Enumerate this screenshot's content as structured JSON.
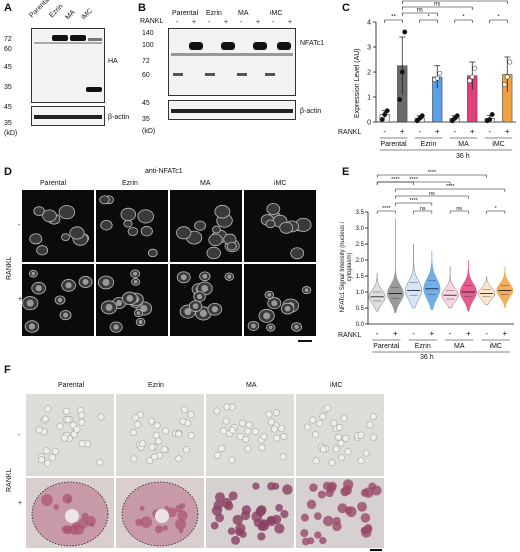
{
  "panels": {
    "A": {
      "label": "A",
      "lanes": [
        "Parental",
        "Ezrin",
        "MA",
        "iMC"
      ],
      "markers_top": [
        "72",
        "60",
        "45",
        "35"
      ],
      "target_label": "HA",
      "markers_bottom": [
        "45",
        "35"
      ],
      "loading_label": "β-actin",
      "unit": "(kD)"
    },
    "B": {
      "label": "B",
      "groups": [
        "Parental",
        "Ezrin",
        "MA",
        "iMC"
      ],
      "treatment_label": "RANKL",
      "signs": [
        "-",
        "+",
        "-",
        "+",
        "-",
        "+",
        "-",
        "+"
      ],
      "markers_top": [
        "140",
        "100",
        "72",
        "60"
      ],
      "target_label": "NFATc1",
      "markers_bottom": [
        "45",
        "35"
      ],
      "loading_label": "β-actin",
      "unit": "(kD)"
    },
    "C": {
      "label": "C",
      "ylabel": "Expression Level (AU)",
      "yticks": [
        "0",
        "1",
        "2",
        "3",
        "4"
      ],
      "treatment_label": "RANKL",
      "signs": [
        "-",
        "+",
        "-",
        "+",
        "-",
        "+",
        "-",
        "+"
      ],
      "groups": [
        "Parental",
        "Ezrin",
        "MA",
        "iMC"
      ],
      "time_label": "36 h",
      "sig": [
        "**",
        "*",
        "ns",
        "*",
        "ns",
        "*",
        "ns",
        "ns",
        "ns"
      ]
    },
    "D": {
      "label": "D",
      "title": "anti-NFATc1",
      "columns": [
        "Parental",
        "Ezrin",
        "MA",
        "iMC"
      ],
      "rows_label": "RANKL",
      "rows": [
        "-",
        "+"
      ]
    },
    "E": {
      "label": "E",
      "ylabel": "NFATc1 Signal Intensity (nucleus / cytoplasm)",
      "yticks": [
        "0.0",
        "0.5",
        "1.0",
        "1.5",
        "2.0",
        "2.5",
        "3.0",
        "3.5"
      ],
      "treatment_label": "RANKL",
      "signs": [
        "-",
        "+",
        "-",
        "+",
        "-",
        "+",
        "-",
        "+"
      ],
      "groups": [
        "Parental",
        "Ezrin",
        "MA",
        "iMC"
      ],
      "time_label": "36 h",
      "sig": [
        "****",
        "****",
        "****",
        "****",
        "ns",
        "****",
        "ns",
        "ns",
        "*",
        "****"
      ]
    },
    "F": {
      "label": "F",
      "columns": [
        "Parental",
        "Ezrin",
        "MA",
        "iMC"
      ],
      "rows_label": "RANKL",
      "rows": [
        "-",
        "+"
      ]
    }
  },
  "chart_data": [
    {
      "type": "bar",
      "panel": "C",
      "categories": [
        "Parental -",
        "Parental +",
        "Ezrin -",
        "Ezrin +",
        "MA -",
        "MA +",
        "iMC -",
        "iMC +"
      ],
      "values": [
        0.3,
        2.25,
        0.15,
        1.8,
        0.15,
        1.85,
        0.15,
        1.9
      ],
      "errors": [
        0.15,
        1.15,
        0.1,
        0.45,
        0.1,
        0.55,
        0.12,
        0.7
      ],
      "points": [
        [
          0.1,
          0.3,
          0.45
        ],
        [
          0.9,
          2.0,
          3.6
        ],
        [
          0.05,
          0.15,
          0.25
        ],
        [
          1.7,
          1.75,
          1.95
        ],
        [
          0.05,
          0.15,
          0.25
        ],
        [
          1.65,
          1.8,
          2.15
        ],
        [
          0.05,
          0.1,
          0.3
        ],
        [
          1.5,
          1.8,
          2.4
        ]
      ],
      "colors": [
        "#f0f0f0",
        "#6a6a6a",
        "#f0f0f0",
        "#5aa0e6",
        "#f0f0f0",
        "#e0407a",
        "#f0f0f0",
        "#f0a040"
      ],
      "point_colors": [
        "#111111",
        "#111111",
        "#111111",
        "#ffffff",
        "#111111",
        "#ffffff",
        "#111111",
        "#ffffff"
      ],
      "ylabel": "Expression Level (AU)",
      "ylim": [
        0,
        4
      ],
      "grid": false
    },
    {
      "type": "violin",
      "panel": "E",
      "categories": [
        "Parental -",
        "Parental +",
        "Ezrin -",
        "Ezrin +",
        "MA -",
        "MA +",
        "iMC -",
        "iMC +"
      ],
      "medians": [
        0.85,
        0.95,
        1.05,
        1.1,
        0.9,
        1.0,
        0.95,
        1.05
      ],
      "q1": [
        0.72,
        0.8,
        0.9,
        0.92,
        0.78,
        0.85,
        0.85,
        0.92
      ],
      "q3": [
        1.0,
        1.15,
        1.3,
        1.35,
        1.05,
        1.2,
        1.08,
        1.2
      ],
      "mins": [
        0.4,
        0.35,
        0.5,
        0.45,
        0.5,
        0.4,
        0.6,
        0.5
      ],
      "maxs": [
        1.6,
        3.3,
        2.5,
        2.3,
        1.8,
        2.0,
        1.5,
        1.8
      ],
      "colors": [
        "#d8d8d8",
        "#8a8a8a",
        "#cfe0f7",
        "#5aa0e6",
        "#f7d0dd",
        "#e0407a",
        "#fbe0c0",
        "#f0a040"
      ],
      "ylabel": "NFATc1 Signal Intensity (nucleus / cytoplasm)",
      "ylim": [
        0,
        3.5
      ],
      "grid": false
    }
  ]
}
